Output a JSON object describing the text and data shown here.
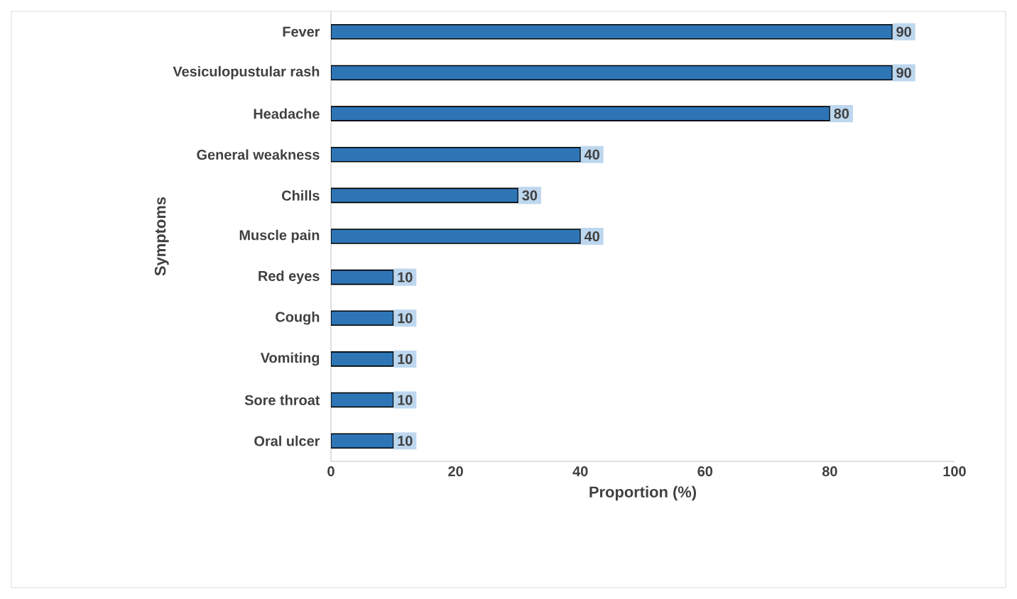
{
  "chart_data": {
    "type": "bar",
    "orientation": "horizontal",
    "xlabel": "Proportion (%)",
    "ylabel": "Symptoms",
    "categories": [
      "Fever",
      "Vesiculopustular rash",
      "Headache",
      "General weakness",
      "Chills",
      "Muscle pain",
      "Red eyes",
      "Cough",
      "Vomiting",
      "Sore throat",
      "Oral ulcer"
    ],
    "values": [
      90,
      90,
      80,
      40,
      30,
      40,
      10,
      10,
      10,
      10,
      10
    ],
    "color": "#2e75b6",
    "xlim": [
      0,
      100
    ],
    "xticks": [
      0,
      20,
      40,
      60,
      80,
      100
    ],
    "data_labels": true
  }
}
